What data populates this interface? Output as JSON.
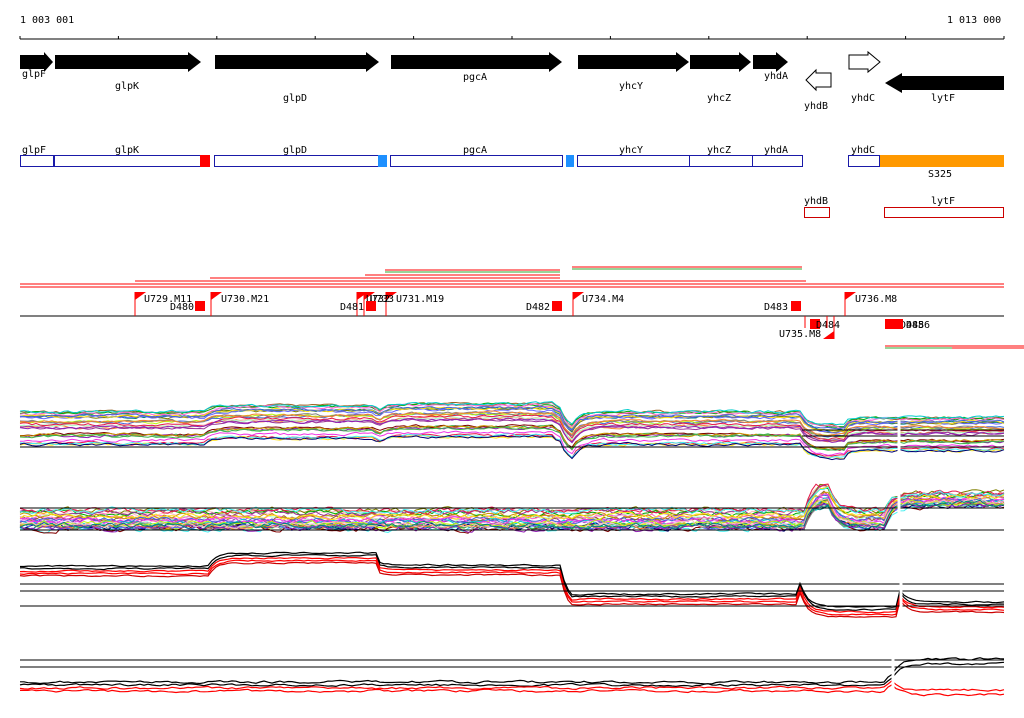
{
  "ruler": {
    "start_label": "1 003 001",
    "end_label": "1 013 000"
  },
  "genes": [
    {
      "name": "glpF",
      "strand": "+",
      "fill": "#000000"
    },
    {
      "name": "glpK",
      "strand": "+",
      "fill": "#000000"
    },
    {
      "name": "glpD",
      "strand": "+",
      "fill": "#000000"
    },
    {
      "name": "pgcA",
      "strand": "+",
      "fill": "#000000"
    },
    {
      "name": "yhcY",
      "strand": "+",
      "fill": "#000000"
    },
    {
      "name": "yhcZ",
      "strand": "+",
      "fill": "#000000"
    },
    {
      "name": "yhdA",
      "strand": "+",
      "fill": "#000000"
    },
    {
      "name": "yhdB",
      "strand": "-",
      "fill": "#ffffff"
    },
    {
      "name": "yhdC",
      "strand": "+",
      "fill": "#ffffff"
    },
    {
      "name": "lytF",
      "strand": "-",
      "fill": "#000000"
    }
  ],
  "operon_plus": [
    {
      "name": "glpF"
    },
    {
      "name": "glpK"
    },
    {
      "name": "glpD"
    },
    {
      "name": "pgcA"
    },
    {
      "name": "yhcY"
    },
    {
      "name": "yhcZ"
    },
    {
      "name": "yhdA"
    },
    {
      "name": "yhdC"
    }
  ],
  "operon_plus_extra": {
    "label": "S325",
    "color": "#ff9900"
  },
  "operon_minus": [
    {
      "name": "yhdB"
    },
    {
      "name": "lytF"
    }
  ],
  "transcription_units": [
    {
      "name": "U729.M11"
    },
    {
      "name": "U730.M21"
    },
    {
      "name": "U731.M19"
    },
    {
      "name": "U732"
    },
    {
      "name": "U733"
    },
    {
      "name": "U734.M4"
    },
    {
      "name": "U735.M8"
    },
    {
      "name": "U736.M8"
    }
  ],
  "downshifts": [
    {
      "name": "D480"
    },
    {
      "name": "D481"
    },
    {
      "name": "D482"
    },
    {
      "name": "D483"
    },
    {
      "name": "D484"
    },
    {
      "name": "D485"
    },
    {
      "name": "D486"
    }
  ],
  "colors": {
    "gene_outline": "#1a1aa8",
    "terminator_red": "#ff0000",
    "terminator_blue": "#1e90ff",
    "segment_green": "#33aa33"
  }
}
